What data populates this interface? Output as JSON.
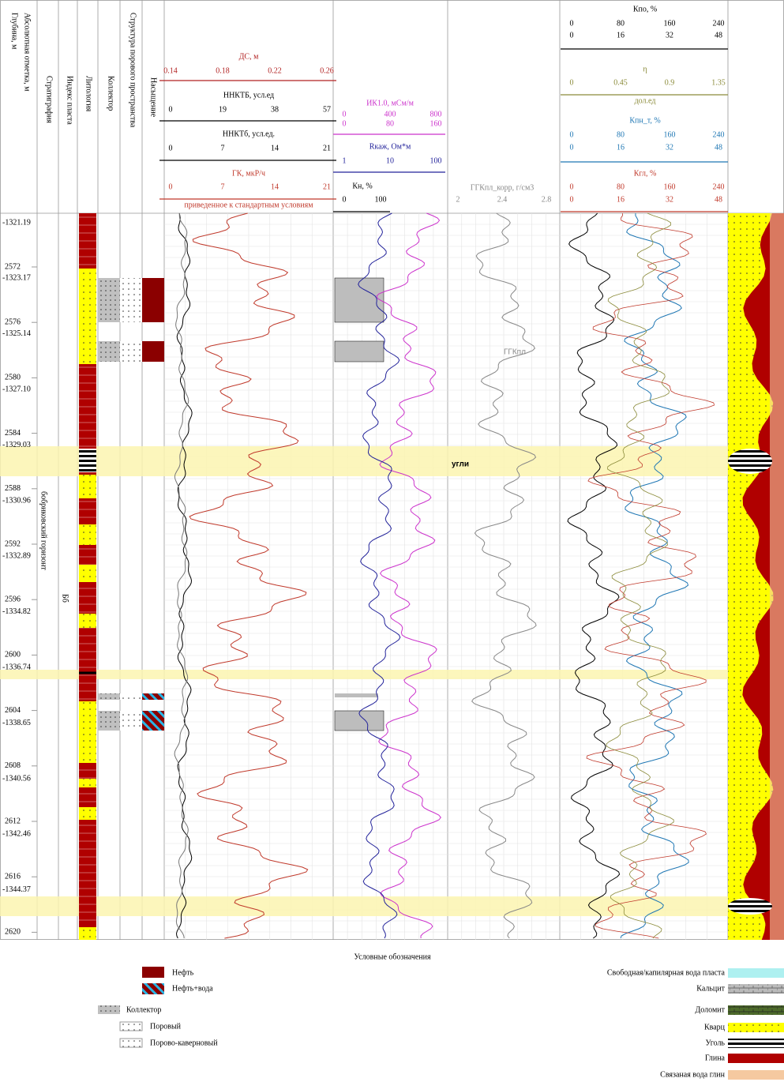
{
  "columns": [
    "Глубина, м",
    "Абсолютная отметка, м",
    "Стратиграфия",
    "Индекс пласта",
    "Литология",
    "Коллектор",
    "Структура порового пространства",
    "Насыщение"
  ],
  "depth_ticks": [
    2572,
    2576,
    2580,
    2584,
    2588,
    2592,
    2596,
    2600,
    2604,
    2608,
    2612,
    2616,
    2620
  ],
  "abs_marks": [
    "-1321.19",
    "-1323.17",
    "-1325.14",
    "-1327.10",
    "-1329.03",
    "-1330.96",
    "-1332.89",
    "-1334.82",
    "-1336.74",
    "-1338.65",
    "-1340.56",
    "-1342.46",
    "-1344.37"
  ],
  "scales": [
    {
      "title": "ДС, м",
      "color": "#b22222",
      "ticks": [
        0.14,
        0.18,
        0.22,
        0.26
      ]
    },
    {
      "title": "ННКТБ, усл.ед",
      "color": "#000000",
      "ticks": [
        0,
        19,
        38,
        57
      ]
    },
    {
      "title": "ННКТб, усл.ед.",
      "color": "#000000",
      "ticks": [
        0,
        7,
        14,
        21
      ]
    },
    {
      "title": "ГК, мкР/ч",
      "color": "#c0392b",
      "ticks": [
        0,
        7,
        14,
        21
      ],
      "note": "приведенное к стандартным условиям"
    },
    {
      "title": "ИК1.0, мСм/м",
      "color": "#cc33cc",
      "ticks": [
        0,
        400,
        800
      ],
      "ticks2": [
        0,
        80,
        160
      ]
    },
    {
      "title": "Rкаж, Ом*м",
      "color": "#22229a",
      "ticks": [
        1,
        10,
        100
      ]
    },
    {
      "title": "Кн, %",
      "color": "#000000",
      "ticks": [
        0,
        100
      ]
    },
    {
      "title": "ГГКпл_корр, г/см3",
      "color": "#888888",
      "ticks": [
        2,
        2.4,
        2.8
      ]
    },
    {
      "title": "Кпо, %",
      "color": "#000000",
      "ticks": [
        0,
        80,
        160,
        240
      ],
      "ticks2": [
        0,
        16,
        32,
        48
      ]
    },
    {
      "title": "η",
      "color": "#8b8b3a",
      "ticks": [
        0,
        0.45,
        0.9,
        1.35
      ],
      "note": "дол.ед"
    },
    {
      "title": "Кпн_т, %",
      "color": "#1f77b4",
      "ticks": [
        0,
        80,
        160,
        240
      ],
      "ticks2": [
        0,
        16,
        32,
        48
      ]
    },
    {
      "title": "Кгл, %",
      "color": "#c0392b",
      "ticks": [
        0,
        80,
        160,
        240
      ],
      "ticks2": [
        0,
        16,
        32,
        48
      ]
    }
  ],
  "annotations": {
    "coal": "угли",
    "ggk": "ГГКпл",
    "horizon": "бобриковский горизонт",
    "index": "Бб"
  },
  "legend": {
    "title": "Условные обозначения",
    "left": [
      "Нефть",
      "Нефть+вода",
      "Коллектор",
      "Поровый",
      "Порово-каверновый"
    ],
    "right": [
      "Свободная/капилярная вода пласта",
      "Кальцит",
      "Доломит",
      "Кварц",
      "Уголь",
      "Глина",
      "Связаная вода глин"
    ]
  }
}
